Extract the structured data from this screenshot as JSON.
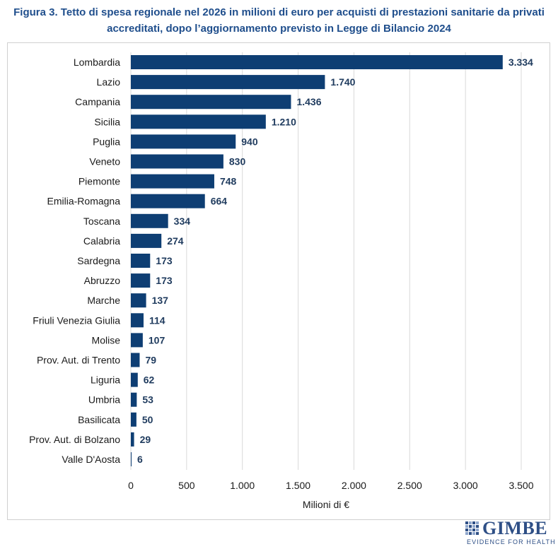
{
  "header": {
    "title_line1": "Figura 3. Tetto di spesa regionale nel 2026 in milioni di euro per acquisti di prestazioni sanitarie da privati",
    "title_line2": "accreditati, dopo l’aggiornamento previsto in Legge di Bilancio 2024"
  },
  "chart_data": {
    "type": "bar",
    "orientation": "horizontal",
    "title": "Figura 3. Tetto di spesa regionale nel 2026 in milioni di euro per acquisti di prestazioni sanitarie da privati accreditati, dopo l’aggiornamento previsto in Legge di Bilancio 2024",
    "xlabel": "Milioni di €",
    "ylabel": "",
    "xlim": [
      0,
      3500
    ],
    "ticks": [
      0,
      500,
      1000,
      1500,
      2000,
      2500,
      3000,
      3500
    ],
    "tick_labels": [
      "0",
      "500",
      "1.000",
      "1.500",
      "2.000",
      "2.500",
      "3.000",
      "3.500"
    ],
    "grid": "vertical",
    "bar_color": "#0e3e73",
    "categories": [
      "Lombardia",
      "Lazio",
      "Campania",
      "Sicilia",
      "Puglia",
      "Veneto",
      "Piemonte",
      "Emilia-Romagna",
      "Toscana",
      "Calabria",
      "Sardegna",
      "Abruzzo",
      "Marche",
      "Friuli Venezia Giulia",
      "Molise",
      "Prov. Aut. di Trento",
      "Liguria",
      "Umbria",
      "Basilicata",
      "Prov. Aut. di Bolzano",
      "Valle D'Aosta"
    ],
    "values": [
      3334,
      1740,
      1436,
      1210,
      940,
      830,
      748,
      664,
      334,
      274,
      173,
      173,
      137,
      114,
      107,
      79,
      62,
      53,
      50,
      29,
      6
    ],
    "value_labels": [
      "3.334",
      "1.740",
      "1.436",
      "1.210",
      "940",
      "830",
      "748",
      "664",
      "334",
      "274",
      "173",
      "173",
      "137",
      "114",
      "107",
      "79",
      "62",
      "53",
      "50",
      "29",
      "6"
    ]
  },
  "logo": {
    "name": "GIMBE",
    "tagline": "EVIDENCE FOR HEALTH"
  }
}
